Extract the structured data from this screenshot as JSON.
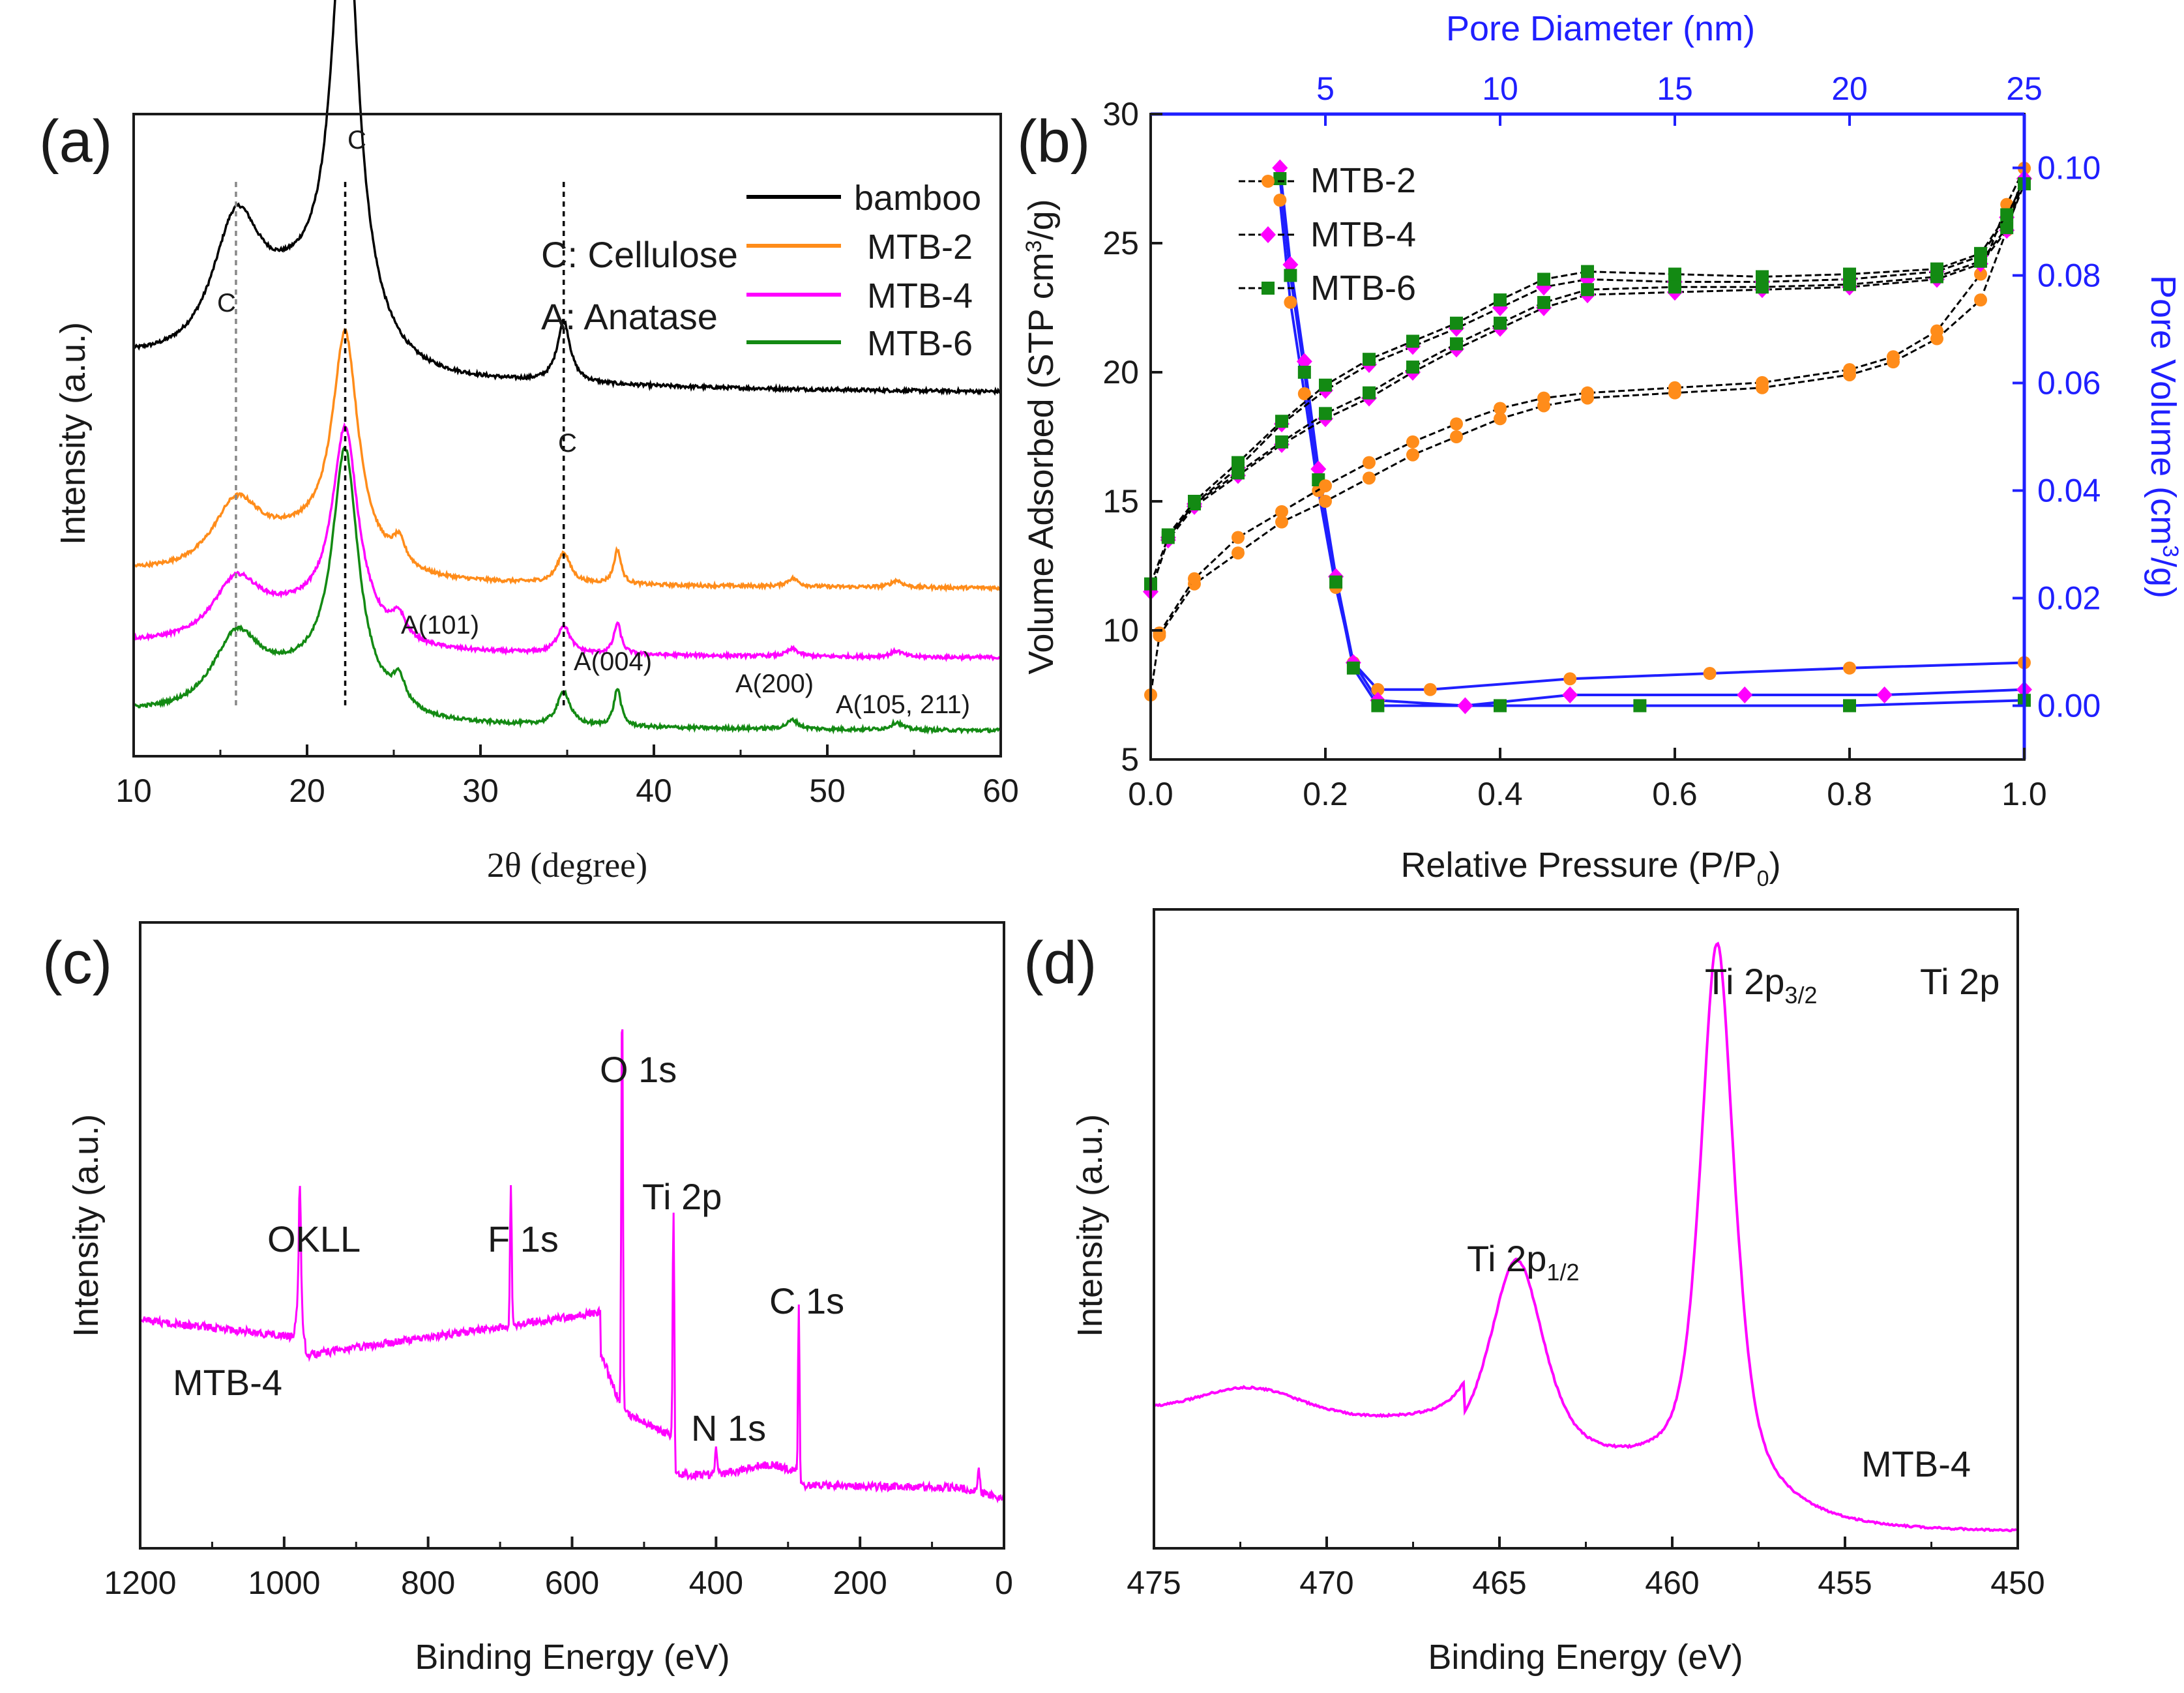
{
  "figure": {
    "panels": [
      "(a)",
      "(b)",
      "(c)",
      "(d)"
    ]
  },
  "colors": {
    "bamboo": "#000000",
    "MTB-2": "#ff8c1a",
    "MTB-4": "#ff00ff",
    "MTB-6": "#138a13",
    "pore": "#1f1fff",
    "axis": "#1a1a1a"
  },
  "chart_data": [
    {
      "id": "a",
      "type": "line",
      "title": "",
      "xlabel": "2θ (degree)",
      "ylabel": "Intensity (a.u.)",
      "xlim": [
        10,
        60
      ],
      "xticks": [
        10,
        20,
        30,
        40,
        50,
        60
      ],
      "legend": [
        "bamboo",
        "MTB-2",
        "MTB-4",
        "MTB-6"
      ],
      "legend_position": "top-right",
      "annotations": {
        "cellulose": "C: Cellulose",
        "anatase": "A: Anatase",
        "c1": "C",
        "c2": "C",
        "c3": "C",
        "a101": "A(101)",
        "a004": "A(004)",
        "a200": "A(200)",
        "a105": "A(105, 211)"
      },
      "reference_lines_x": [
        15.9,
        22.2,
        34.8
      ],
      "series": [
        {
          "name": "bamboo",
          "offset": 2.4,
          "scale": 1.0,
          "anatase": false
        },
        {
          "name": "MTB-2",
          "offset": 1.05,
          "scale": 0.5,
          "anatase": true
        },
        {
          "name": "MTB-4",
          "offset": 0.55,
          "scale": 0.45,
          "anatase": true
        },
        {
          "name": "MTB-6",
          "offset": 0.0,
          "scale": 0.55,
          "anatase": true
        }
      ],
      "peaks_2theta": {
        "cellulose": [
          15.9,
          22.2,
          34.8
        ],
        "anatase": [
          25.3,
          37.9,
          48.0,
          54.0
        ]
      }
    },
    {
      "id": "b",
      "type": "line",
      "xlabel": "Relative Pressure (P/P0)",
      "xlabel_main": "Relative Pressure (P/P",
      "xlabel_sub": "0",
      "xlabel_end": ")",
      "ylabel": "Volume Adsorbed (STP cm3/g)",
      "ylabel_pre": "Volume Adsorbed (STP cm",
      "ylabel_sup": "3",
      "ylabel_post": "/g)",
      "y2label": "Pore Volume (cm3/g)",
      "y2label_pre": "Pore Volume (cm",
      "y2label_sup": "3",
      "y2label_post": "/g)",
      "x2label": "Pore Diameter (nm)",
      "xlim": [
        0.0,
        1.0
      ],
      "ylim": [
        5,
        30
      ],
      "y2lim": [
        -0.01,
        0.11
      ],
      "x2lim": [
        0,
        25
      ],
      "xticks": [
        "0.0",
        "0.2",
        "0.4",
        "0.6",
        "0.8",
        "1.0"
      ],
      "yticks": [
        "5",
        "10",
        "15",
        "20",
        "25",
        "30"
      ],
      "y2ticks": [
        "0.00",
        "0.02",
        "0.04",
        "0.06",
        "0.08",
        "0.10"
      ],
      "x2ticks": [
        "5",
        "10",
        "15",
        "20",
        "25"
      ],
      "legend": [
        "MTB-2",
        "MTB-4",
        "MTB-6"
      ],
      "legend_position": "top-left",
      "isotherms": {
        "MTB-2": {
          "adsorption": [
            [
              0.0,
              7.5
            ],
            [
              0.01,
              9.8
            ],
            [
              0.05,
              11.8
            ],
            [
              0.1,
              13.0
            ],
            [
              0.15,
              14.2
            ],
            [
              0.2,
              15.0
            ],
            [
              0.25,
              15.9
            ],
            [
              0.3,
              16.8
            ],
            [
              0.35,
              17.5
            ],
            [
              0.4,
              18.2
            ],
            [
              0.45,
              18.7
            ],
            [
              0.5,
              19.0
            ],
            [
              0.6,
              19.2
            ],
            [
              0.7,
              19.4
            ],
            [
              0.8,
              19.9
            ],
            [
              0.85,
              20.4
            ],
            [
              0.9,
              21.3
            ],
            [
              0.95,
              22.8
            ],
            [
              0.98,
              25.5
            ],
            [
              1.0,
              27.9
            ]
          ],
          "desorption": [
            [
              1.0,
              27.9
            ],
            [
              0.98,
              26.5
            ],
            [
              0.95,
              23.8
            ],
            [
              0.9,
              21.6
            ],
            [
              0.85,
              20.6
            ],
            [
              0.8,
              20.1
            ],
            [
              0.7,
              19.6
            ],
            [
              0.6,
              19.4
            ],
            [
              0.5,
              19.2
            ],
            [
              0.45,
              19.0
            ],
            [
              0.4,
              18.6
            ],
            [
              0.35,
              18.0
            ],
            [
              0.3,
              17.3
            ],
            [
              0.25,
              16.5
            ],
            [
              0.2,
              15.6
            ],
            [
              0.15,
              14.6
            ],
            [
              0.1,
              13.6
            ],
            [
              0.05,
              12.0
            ],
            [
              0.01,
              9.9
            ]
          ]
        },
        "MTB-4": {
          "adsorption": [
            [
              0.0,
              11.5
            ],
            [
              0.02,
              13.5
            ],
            [
              0.05,
              14.8
            ],
            [
              0.1,
              16.0
            ],
            [
              0.15,
              17.2
            ],
            [
              0.2,
              18.2
            ],
            [
              0.25,
              19.0
            ],
            [
              0.3,
              20.0
            ],
            [
              0.35,
              20.9
            ],
            [
              0.4,
              21.7
            ],
            [
              0.45,
              22.5
            ],
            [
              0.5,
              23.0
            ],
            [
              0.6,
              23.1
            ],
            [
              0.7,
              23.2
            ],
            [
              0.8,
              23.3
            ],
            [
              0.9,
              23.6
            ],
            [
              0.95,
              24.2
            ],
            [
              0.98,
              25.5
            ],
            [
              1.0,
              27.5
            ]
          ],
          "desorption": [
            [
              1.0,
              27.5
            ],
            [
              0.98,
              26.0
            ],
            [
              0.95,
              24.5
            ],
            [
              0.9,
              23.9
            ],
            [
              0.8,
              23.6
            ],
            [
              0.7,
              23.5
            ],
            [
              0.6,
              23.5
            ],
            [
              0.5,
              23.6
            ],
            [
              0.45,
              23.3
            ],
            [
              0.4,
              22.5
            ],
            [
              0.35,
              21.7
            ],
            [
              0.3,
              21.0
            ],
            [
              0.25,
              20.3
            ],
            [
              0.2,
              19.3
            ],
            [
              0.15,
              18.0
            ],
            [
              0.1,
              16.3
            ],
            [
              0.05,
              14.9
            ],
            [
              0.02,
              13.6
            ]
          ]
        },
        "MTB-6": {
          "adsorption": [
            [
              0.0,
              11.8
            ],
            [
              0.02,
              13.6
            ],
            [
              0.05,
              14.9
            ],
            [
              0.1,
              16.1
            ],
            [
              0.15,
              17.3
            ],
            [
              0.2,
              18.4
            ],
            [
              0.25,
              19.2
            ],
            [
              0.3,
              20.2
            ],
            [
              0.35,
              21.1
            ],
            [
              0.4,
              21.9
            ],
            [
              0.45,
              22.7
            ],
            [
              0.5,
              23.2
            ],
            [
              0.6,
              23.3
            ],
            [
              0.7,
              23.3
            ],
            [
              0.8,
              23.4
            ],
            [
              0.9,
              23.7
            ],
            [
              0.95,
              24.3
            ],
            [
              0.98,
              25.6
            ],
            [
              1.0,
              27.3
            ]
          ],
          "desorption": [
            [
              1.0,
              27.3
            ],
            [
              0.98,
              26.1
            ],
            [
              0.95,
              24.6
            ],
            [
              0.9,
              24.0
            ],
            [
              0.8,
              23.8
            ],
            [
              0.7,
              23.7
            ],
            [
              0.6,
              23.8
            ],
            [
              0.5,
              23.9
            ],
            [
              0.45,
              23.6
            ],
            [
              0.4,
              22.8
            ],
            [
              0.35,
              21.9
            ],
            [
              0.3,
              21.2
            ],
            [
              0.25,
              20.5
            ],
            [
              0.2,
              19.5
            ],
            [
              0.15,
              18.1
            ],
            [
              0.1,
              16.5
            ],
            [
              0.05,
              15.0
            ],
            [
              0.02,
              13.7
            ]
          ]
        }
      },
      "pore_distribution": {
        "MTB-2": [
          [
            3.7,
            0.094
          ],
          [
            4.0,
            0.075
          ],
          [
            4.4,
            0.058
          ],
          [
            4.8,
            0.04
          ],
          [
            5.3,
            0.022
          ],
          [
            5.8,
            0.008
          ],
          [
            6.5,
            0.003
          ],
          [
            8.0,
            0.003
          ],
          [
            12,
            0.005
          ],
          [
            16,
            0.006
          ],
          [
            20,
            0.007
          ],
          [
            25,
            0.008
          ]
        ],
        "MTB-4": [
          [
            3.7,
            0.1
          ],
          [
            4.0,
            0.082
          ],
          [
            4.4,
            0.064
          ],
          [
            4.8,
            0.044
          ],
          [
            5.3,
            0.024
          ],
          [
            5.8,
            0.008
          ],
          [
            6.5,
            0.001
          ],
          [
            9,
            0.0
          ],
          [
            12,
            0.002
          ],
          [
            17,
            0.002
          ],
          [
            21,
            0.002
          ],
          [
            25,
            0.003
          ]
        ],
        "MTB-6": [
          [
            3.7,
            0.098
          ],
          [
            4.0,
            0.08
          ],
          [
            4.4,
            0.062
          ],
          [
            4.8,
            0.042
          ],
          [
            5.3,
            0.023
          ],
          [
            5.8,
            0.007
          ],
          [
            6.5,
            0.0
          ],
          [
            10,
            0.0
          ],
          [
            14,
            0.0
          ],
          [
            20,
            0.0
          ],
          [
            25,
            0.001
          ]
        ]
      }
    },
    {
      "id": "c",
      "type": "line",
      "xlabel": "Binding Energy (eV)",
      "ylabel": "Intensity (a.u.)",
      "xlim": [
        1200,
        0
      ],
      "xticks": [
        1200,
        1000,
        800,
        600,
        400,
        200,
        0
      ],
      "sample_label": "MTB-4",
      "peaks": [
        {
          "label": "OKLL",
          "energy": 978
        },
        {
          "label": "F 1s",
          "energy": 685
        },
        {
          "label": "O 1s",
          "energy": 530
        },
        {
          "label": "Ti 2p",
          "energy": 459
        },
        {
          "label": "N 1s",
          "energy": 400
        },
        {
          "label": "C 1s",
          "energy": 285
        }
      ]
    },
    {
      "id": "d",
      "type": "line",
      "xlabel": "Binding Energy (eV)",
      "ylabel": "Intensity (a.u.)",
      "xlim": [
        475,
        450
      ],
      "xticks": [
        475,
        470,
        465,
        460,
        455,
        450
      ],
      "region_label": "Ti 2p",
      "sample_label": "MTB-4",
      "peak_labels": {
        "p32_main": "Ti 2p",
        "p32_sub": "3/2",
        "p12_main": "Ti 2p",
        "p12_sub": "1/2"
      },
      "peaks": [
        {
          "name": "Ti 2p3/2",
          "energy": 458.7,
          "height": 1.0
        },
        {
          "name": "Ti 2p1/2",
          "energy": 464.5,
          "height": 0.38
        },
        {
          "name": "satellite",
          "energy": 472.2,
          "height": 0.05
        }
      ]
    }
  ]
}
